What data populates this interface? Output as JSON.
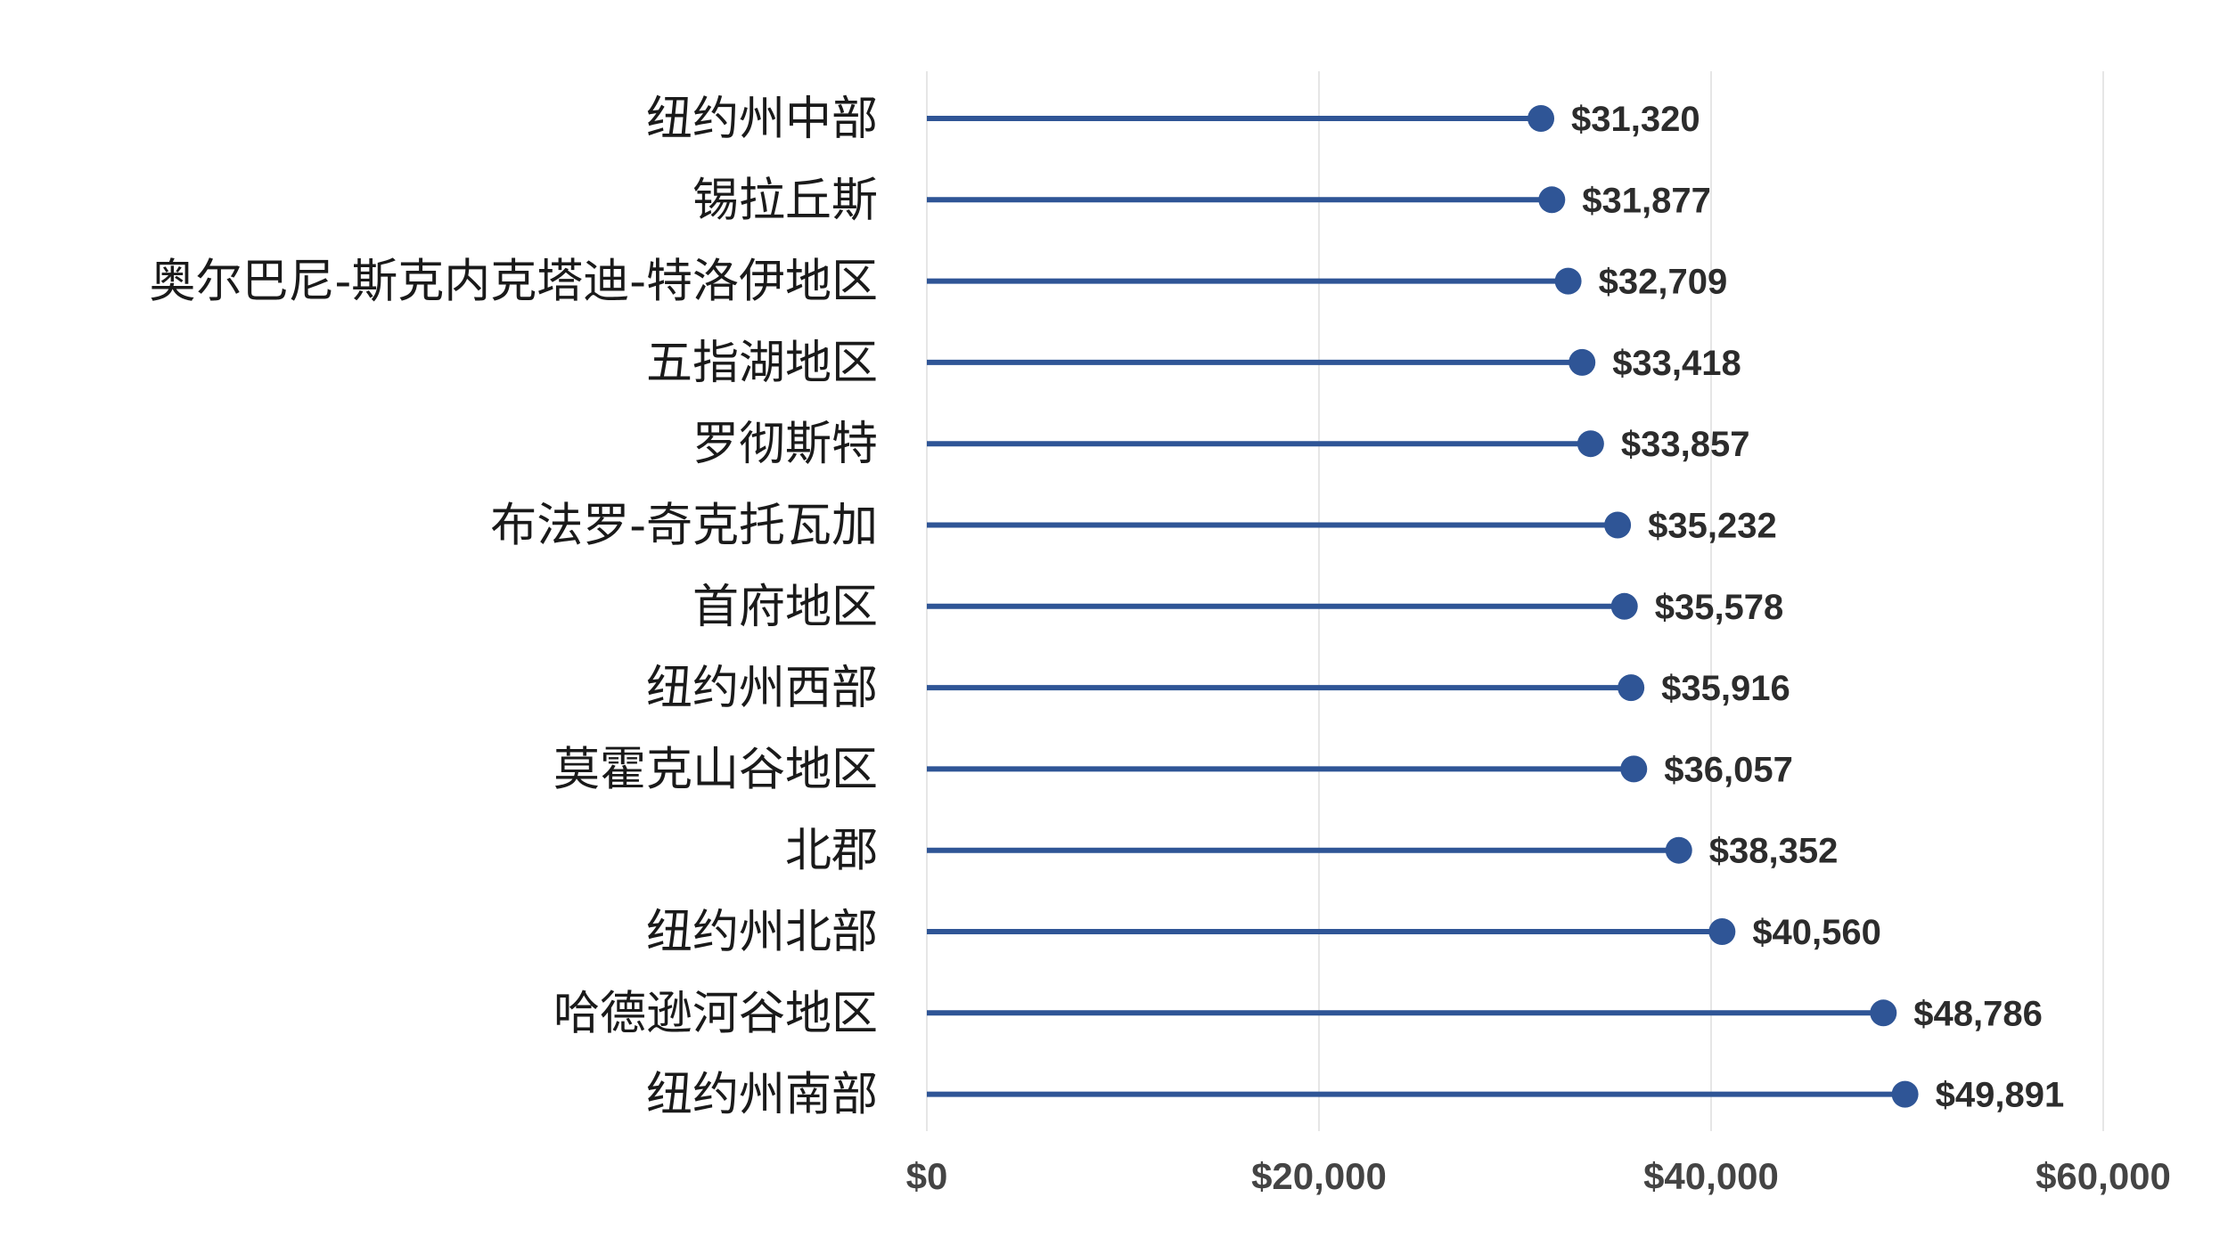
{
  "colors": {
    "series": "#2f5596",
    "grid": "#e6e6e6",
    "background": "#ffffff"
  },
  "chart_data": {
    "type": "lollipop",
    "orientation": "horizontal",
    "title": "",
    "xlabel": "",
    "ylabel": "",
    "grid": "vertical",
    "legend": "none",
    "xlim": [
      0,
      60000
    ],
    "x_ticks": [
      0,
      20000,
      40000,
      60000
    ],
    "x_tick_labels": [
      "$0",
      "$20,000",
      "$40,000",
      "$60,000"
    ],
    "categories": [
      "纽约州中部",
      "锡拉丘斯",
      "奥尔巴尼-斯克内克塔迪-特洛伊地区",
      "五指湖地区",
      "罗彻斯特",
      "布法罗-奇克托瓦加",
      "首府地区",
      "纽约州西部",
      "莫霍克山谷地区",
      "北郡",
      "纽约州北部",
      "哈德逊河谷地区",
      "纽约州南部"
    ],
    "values": [
      31320,
      31877,
      32709,
      33418,
      33857,
      35232,
      35578,
      35916,
      36057,
      38352,
      40560,
      48786,
      49891
    ],
    "value_labels": [
      "$31,320",
      "$31,877",
      "$32,709",
      "$33,418",
      "$33,857",
      "$35,232",
      "$35,578",
      "$35,916",
      "$36,057",
      "$38,352",
      "$40,560",
      "$48,786",
      "$49,891"
    ]
  }
}
